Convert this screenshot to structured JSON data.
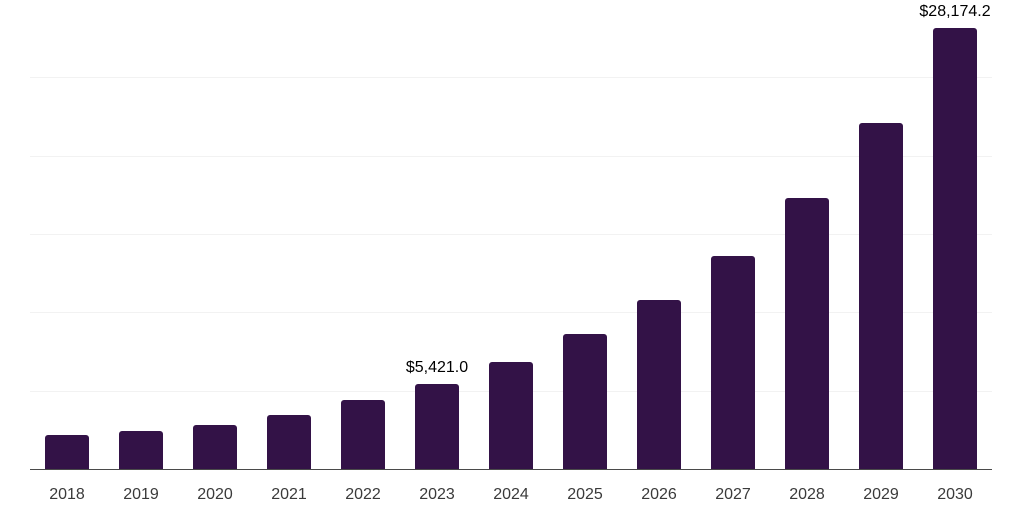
{
  "chart_data": {
    "type": "bar",
    "title": "",
    "xlabel": "",
    "ylabel": "",
    "categories": [
      "2018",
      "2019",
      "2020",
      "2021",
      "2022",
      "2023",
      "2024",
      "2025",
      "2026",
      "2027",
      "2028",
      "2029",
      "2030"
    ],
    "values": [
      2200,
      2430,
      2800,
      3430,
      4430,
      5421.0,
      6820,
      8590,
      10760,
      13570,
      17320,
      22060,
      28174.2
    ],
    "data_labels": [
      "",
      "",
      "",
      "",
      "",
      "$5,421.0",
      "",
      "",
      "",
      "",
      "",
      "",
      "$28,174.2"
    ],
    "ylim": [
      0,
      30000
    ],
    "gridline_interval": 5000,
    "grid": true,
    "legend": false,
    "bar_color": "#331247",
    "gridline_color": "#f2f2f2",
    "axis_line_color": "#4a4a4a",
    "tick_label_color": "#3a3a3a",
    "data_label_color": "#000000"
  }
}
